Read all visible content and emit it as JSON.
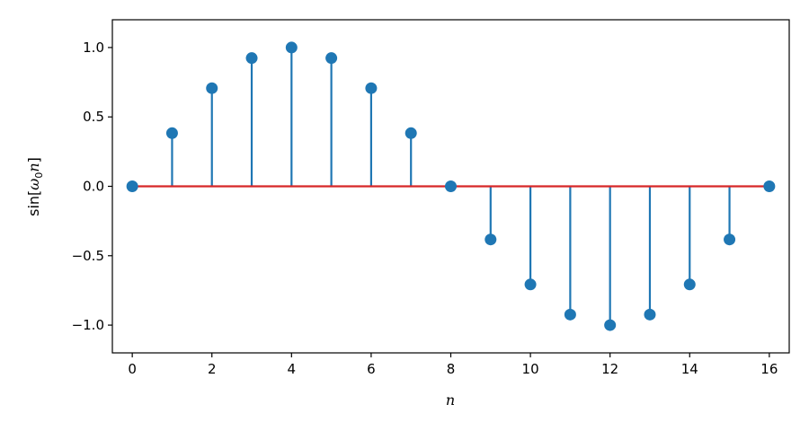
{
  "chart_data": {
    "type": "stem",
    "x": [
      0,
      1,
      2,
      3,
      4,
      5,
      6,
      7,
      8,
      9,
      10,
      11,
      12,
      13,
      14,
      15,
      16
    ],
    "y": [
      0.0,
      0.383,
      0.707,
      0.924,
      1.0,
      0.924,
      0.707,
      0.383,
      0.0,
      -0.383,
      -0.707,
      -0.924,
      -1.0,
      -0.924,
      -0.707,
      -0.383,
      0.0
    ],
    "xlabel": "n",
    "ylabel": {
      "prefix": "sin[",
      "symbol": "ω",
      "subscript": "0",
      "var": "n",
      "suffix": "]"
    },
    "xlim": [
      -0.5,
      16.5
    ],
    "ylim": [
      -1.2,
      1.2
    ],
    "xticks": [
      0,
      2,
      4,
      6,
      8,
      10,
      12,
      14,
      16
    ],
    "xtick_labels": [
      "0",
      "2",
      "4",
      "6",
      "8",
      "10",
      "12",
      "14",
      "16"
    ],
    "yticks": [
      -1.0,
      -0.5,
      0.0,
      0.5,
      1.0
    ],
    "ytick_labels": [
      "−1.0",
      "−0.5",
      "0.0",
      "0.5",
      "1.0"
    ],
    "grid": false,
    "colors": {
      "stem": "#1f77b4",
      "baseline": "#d62728",
      "axes": "#000000"
    }
  }
}
